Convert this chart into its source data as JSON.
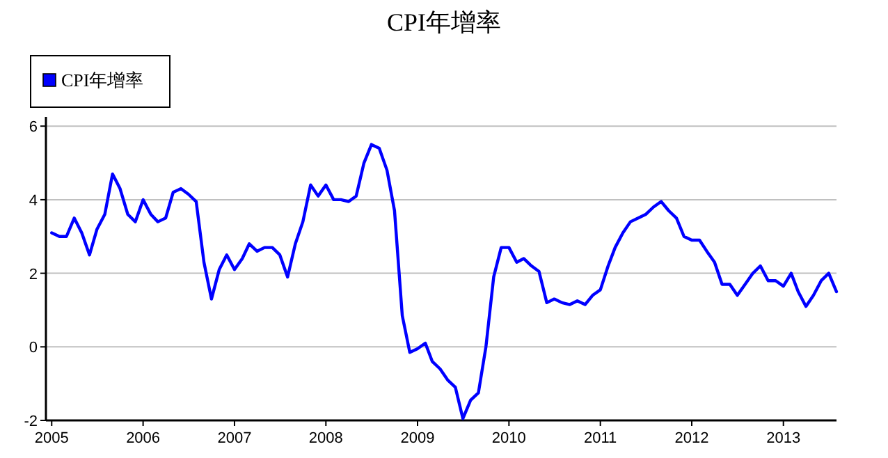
{
  "chart_data": {
    "type": "line",
    "title": "CPI年增率",
    "legend": "top left",
    "grid": "y",
    "marker": "none",
    "line_style": "solid",
    "xlim": [
      "2004-12-09",
      "2013-08-01"
    ],
    "xticks": [
      "2005",
      "2006",
      "2007",
      "2008",
      "2009",
      "2010",
      "2011",
      "2012",
      "2013"
    ],
    "ylim": [
      -2,
      6.25
    ],
    "yticks": [
      -2,
      0,
      2,
      4,
      6
    ],
    "x": [
      "2005-01",
      "2005-02",
      "2005-03",
      "2005-04",
      "2005-05",
      "2005-06",
      "2005-07",
      "2005-08",
      "2005-09",
      "2005-10",
      "2005-11",
      "2005-12",
      "2006-01",
      "2006-02",
      "2006-03",
      "2006-04",
      "2006-05",
      "2006-06",
      "2006-07",
      "2006-08",
      "2006-09",
      "2006-10",
      "2006-11",
      "2006-12",
      "2007-01",
      "2007-02",
      "2007-03",
      "2007-04",
      "2007-05",
      "2007-06",
      "2007-07",
      "2007-08",
      "2007-09",
      "2007-10",
      "2007-11",
      "2007-12",
      "2008-01",
      "2008-02",
      "2008-03",
      "2008-04",
      "2008-05",
      "2008-06",
      "2008-07",
      "2008-08",
      "2008-09",
      "2008-10",
      "2008-11",
      "2008-12",
      "2009-01",
      "2009-02",
      "2009-03",
      "2009-04",
      "2009-05",
      "2009-06",
      "2009-07",
      "2009-08",
      "2009-09",
      "2009-10",
      "2009-11",
      "2009-12",
      "2010-01",
      "2010-02",
      "2010-03",
      "2010-04",
      "2010-05",
      "2010-06",
      "2010-07",
      "2010-08",
      "2010-09",
      "2010-10",
      "2010-11",
      "2010-12",
      "2011-01",
      "2011-02",
      "2011-03",
      "2011-04",
      "2011-05",
      "2011-06",
      "2011-07",
      "2011-08",
      "2011-09",
      "2011-10",
      "2011-11",
      "2011-12",
      "2012-01",
      "2012-02",
      "2012-03",
      "2012-04",
      "2012-05",
      "2012-06",
      "2012-07",
      "2012-08",
      "2012-09",
      "2012-10",
      "2012-11",
      "2012-12",
      "2013-01",
      "2013-02",
      "2013-03",
      "2013-04",
      "2013-05",
      "2013-06",
      "2013-07",
      "2013-08"
    ],
    "series": [
      {
        "name": "CPI年增率",
        "color": "#0000ff",
        "values": [
          3.1,
          3.0,
          3.0,
          3.5,
          3.1,
          2.5,
          3.2,
          3.6,
          4.7,
          4.3,
          3.6,
          3.4,
          4.0,
          3.6,
          3.4,
          3.5,
          4.2,
          4.3,
          4.15,
          3.95,
          2.3,
          1.3,
          2.1,
          2.5,
          2.1,
          2.4,
          2.8,
          2.6,
          2.7,
          2.7,
          2.5,
          1.9,
          2.8,
          3.4,
          4.4,
          4.1,
          4.4,
          4.0,
          4.0,
          3.95,
          4.1,
          5.0,
          5.5,
          5.4,
          4.8,
          3.7,
          0.85,
          -0.15,
          -0.05,
          0.1,
          -0.4,
          -0.6,
          -0.9,
          -1.1,
          -1.95,
          -1.45,
          -1.25,
          0.0,
          1.9,
          2.7,
          2.7,
          2.3,
          2.4,
          2.2,
          2.05,
          1.2,
          1.3,
          1.2,
          1.15,
          1.25,
          1.15,
          1.4,
          1.55,
          2.2,
          2.7,
          3.1,
          3.4,
          3.5,
          3.6,
          3.8,
          3.95,
          3.7,
          3.5,
          3.0,
          2.9,
          2.9,
          2.6,
          2.3,
          1.7,
          1.7,
          1.4,
          1.7,
          2.0,
          2.2,
          1.8,
          1.8,
          1.65,
          2.0,
          1.5,
          1.1,
          1.4,
          1.8,
          2.0,
          1.5
        ]
      }
    ]
  }
}
